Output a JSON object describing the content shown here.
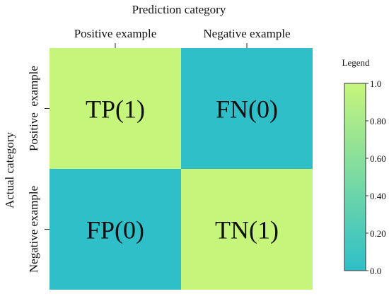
{
  "chart_data": {
    "type": "heatmap",
    "title": "",
    "xlabel": "Prediction category",
    "ylabel": "Actual category",
    "x_categories": [
      "Positive example",
      "Negative example"
    ],
    "y_categories": [
      "Positive  example",
      "Negative example"
    ],
    "values": [
      [
        1,
        0
      ],
      [
        0,
        1
      ]
    ],
    "cell_labels": [
      [
        "TP(1)",
        "FN(0)"
      ],
      [
        "FP(0)",
        "TN(1)"
      ]
    ],
    "colorbar": {
      "title": "Legend",
      "range": [
        0,
        1
      ],
      "ticks": [
        {
          "value": 1,
          "label": "1.0"
        },
        {
          "value": 0.8,
          "label": "0.80"
        },
        {
          "value": 0.6,
          "label": "0.60"
        },
        {
          "value": 0.4,
          "label": "0.40"
        },
        {
          "value": 0.2,
          "label": "0.20"
        },
        {
          "value": 0,
          "label": "0.0"
        }
      ],
      "color_low": "#2ebfc9",
      "color_high": "#c6f57b"
    },
    "x_axis_position": "top",
    "grid": false,
    "legend_position": "right"
  }
}
